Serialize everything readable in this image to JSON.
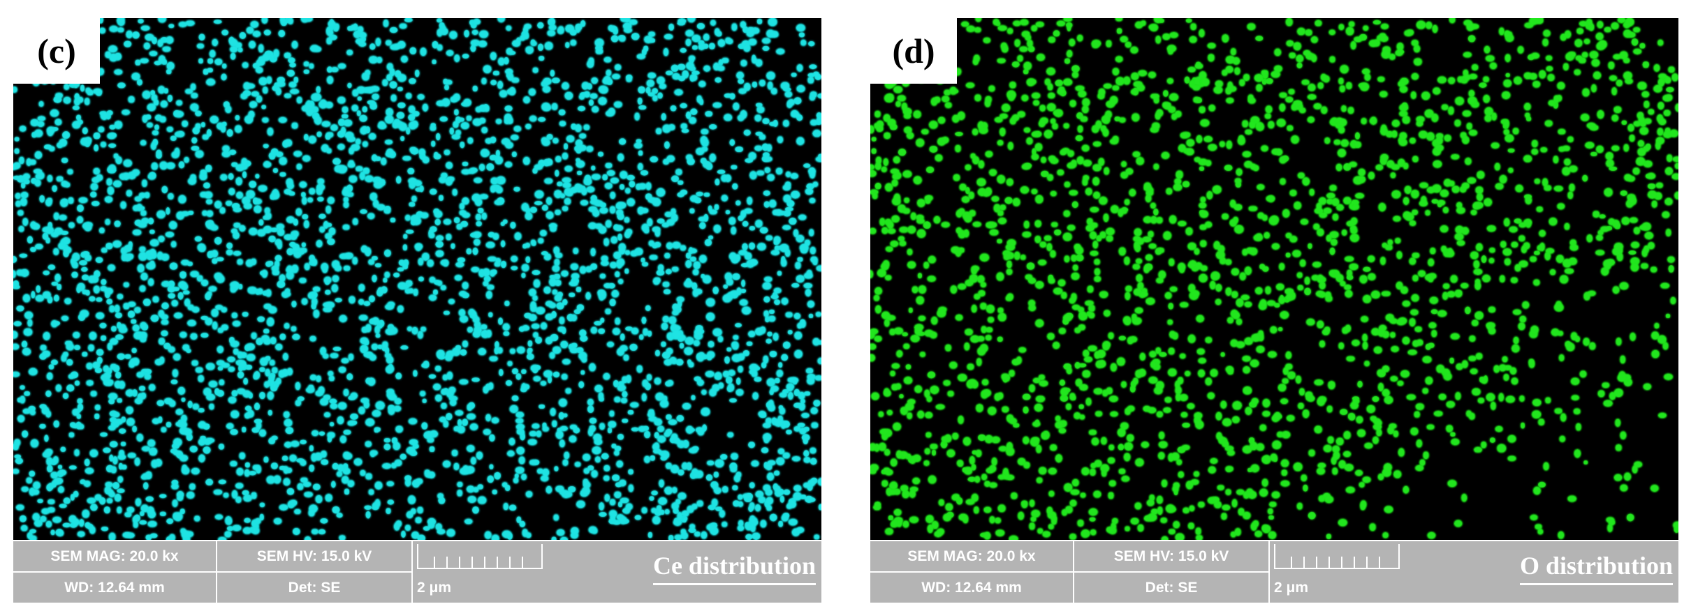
{
  "panels": [
    {
      "id": "c",
      "label": "(c)",
      "element_color": "#1fe3e3",
      "sem_mag": "SEM MAG: 20.0 kx",
      "sem_hv": "SEM HV: 15.0 kV",
      "wd": "WD: 12.64 mm",
      "det": "Det: SE",
      "scale": "2 μm",
      "title": "Ce distribution"
    },
    {
      "id": "d",
      "label": "(d)",
      "element_color": "#22e61e",
      "sem_mag": "SEM MAG: 20.0 kx",
      "sem_hv": "SEM HV: 15.0 kV",
      "wd": "WD: 12.64 mm",
      "det": "Det: SE",
      "scale": "2 μm",
      "title": "O distribution"
    }
  ]
}
